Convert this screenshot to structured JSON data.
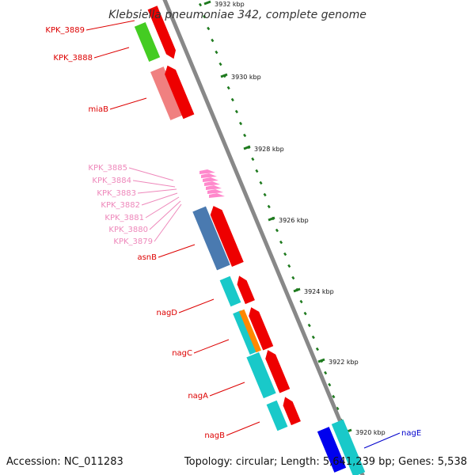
{
  "header": {
    "title": "Klebsiella pneumoniae 342, complete genome"
  },
  "footer": {
    "accession": "Accession: NC_011283",
    "topology": "Topology: circular; Length: 5,641,239 bp; Genes: 5,538"
  },
  "scale": {
    "ticks": [
      {
        "label": "3932 kbp"
      },
      {
        "label": "3930 kbp"
      },
      {
        "label": "3928 kbp"
      },
      {
        "label": "3926 kbp"
      },
      {
        "label": "3924 kbp"
      },
      {
        "label": "3922 kbp"
      },
      {
        "label": "3920 kbp"
      }
    ]
  },
  "genes": {
    "kpk3889": "KPK_3889",
    "kpk3888": "KPK_3888",
    "miaB": "miaB",
    "kpk3885": "KPK_3885",
    "kpk3884": "KPK_3884",
    "kpk3883": "KPK_3883",
    "kpk3882": "KPK_3882",
    "kpk3881": "KPK_3881",
    "kpk3880": "KPK_3880",
    "kpk3879": "KPK_3879",
    "asnB": "asnB",
    "nagD": "nagD",
    "nagC": "nagC",
    "nagA": "nagA",
    "nagB": "nagB",
    "nagE": "nagE"
  },
  "colors": {
    "red_label": "#dd0000",
    "pink_label": "#ee88bb",
    "blue_label": "#0000cc",
    "backbone": "#888888",
    "tick": "#1e7a1e",
    "cds_red": "#ee0000",
    "cyan": "#19c9c9",
    "steel_blue": "#4a7ab0",
    "green": "#44cc22",
    "salmon": "#f08080",
    "orange": "#ff8800",
    "blue": "#0000ee",
    "pink": "#ff88cc"
  }
}
